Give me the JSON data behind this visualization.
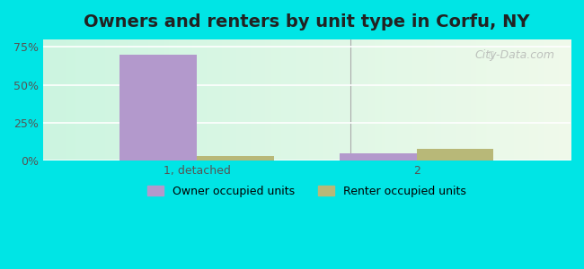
{
  "title": "Owners and renters by unit type in Corfu, NY",
  "categories": [
    "1, detached",
    "2"
  ],
  "owner_values": [
    70.0,
    5.0
  ],
  "renter_values": [
    3.0,
    8.0
  ],
  "owner_color": "#b399cc",
  "renter_color": "#b8b878",
  "ylim": [
    0,
    80
  ],
  "yticks": [
    0,
    25,
    50,
    75
  ],
  "ytick_labels": [
    "0%",
    "25%",
    "50%",
    "75%"
  ],
  "bar_width": 0.35,
  "background_left": "#00e5e5",
  "background_right": "#f0f8e8",
  "plot_bg_left": "#ccf0d8",
  "plot_bg_right": "#f0f8ec",
  "title_fontsize": 14,
  "legend_labels": [
    "Owner occupied units",
    "Renter occupied units"
  ],
  "watermark": "City-Data.com"
}
